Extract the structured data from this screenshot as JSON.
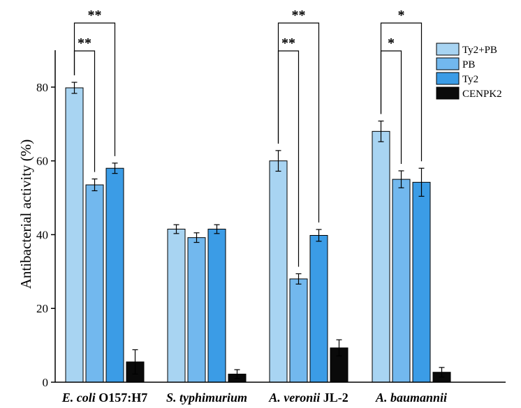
{
  "chart_data": {
    "type": "bar",
    "ylabel": "Antibacterial activity (%)",
    "ylim": [
      0,
      90
    ],
    "yticks": [
      0,
      20,
      40,
      60,
      80
    ],
    "grid": false,
    "legend_position": "top-right",
    "categories": [
      {
        "italic": "E. coli",
        "plain": " O157:H7"
      },
      {
        "italic": "S. typhimurium",
        "plain": ""
      },
      {
        "italic": "A. veronii",
        "plain": " JL-2"
      },
      {
        "italic": "A. baumannii",
        "plain": ""
      }
    ],
    "series": [
      {
        "name": "Ty2+PB",
        "color": "#a8d4f2",
        "values": [
          79.8,
          41.5,
          60.0,
          68.0
        ],
        "errors": [
          1.5,
          1.2,
          2.8,
          2.8
        ]
      },
      {
        "name": "PB",
        "color": "#72b8ee",
        "values": [
          53.5,
          39.2,
          28.0,
          55.0
        ],
        "errors": [
          1.6,
          1.3,
          1.4,
          2.3
        ]
      },
      {
        "name": "Ty2",
        "color": "#3b9ce6",
        "values": [
          58.0,
          41.5,
          39.8,
          54.2
        ],
        "errors": [
          1.4,
          1.2,
          1.6,
          3.8
        ]
      },
      {
        "name": "CENPK2",
        "color": "#0a0a0a",
        "values": [
          5.5,
          2.2,
          9.3,
          2.7
        ],
        "errors": [
          3.3,
          1.2,
          2.2,
          1.3
        ]
      }
    ],
    "significance": [
      {
        "category": 0,
        "from": 0,
        "to": 1,
        "label": "**",
        "level": "low"
      },
      {
        "category": 0,
        "from": 0,
        "to": 2,
        "label": "**",
        "level": "high"
      },
      {
        "category": 2,
        "from": 0,
        "to": 1,
        "label": "**",
        "level": "low"
      },
      {
        "category": 2,
        "from": 0,
        "to": 2,
        "label": "**",
        "level": "high"
      },
      {
        "category": 3,
        "from": 0,
        "to": 1,
        "label": "*",
        "level": "low"
      },
      {
        "category": 3,
        "from": 0,
        "to": 2,
        "label": "*",
        "level": "high"
      }
    ]
  }
}
